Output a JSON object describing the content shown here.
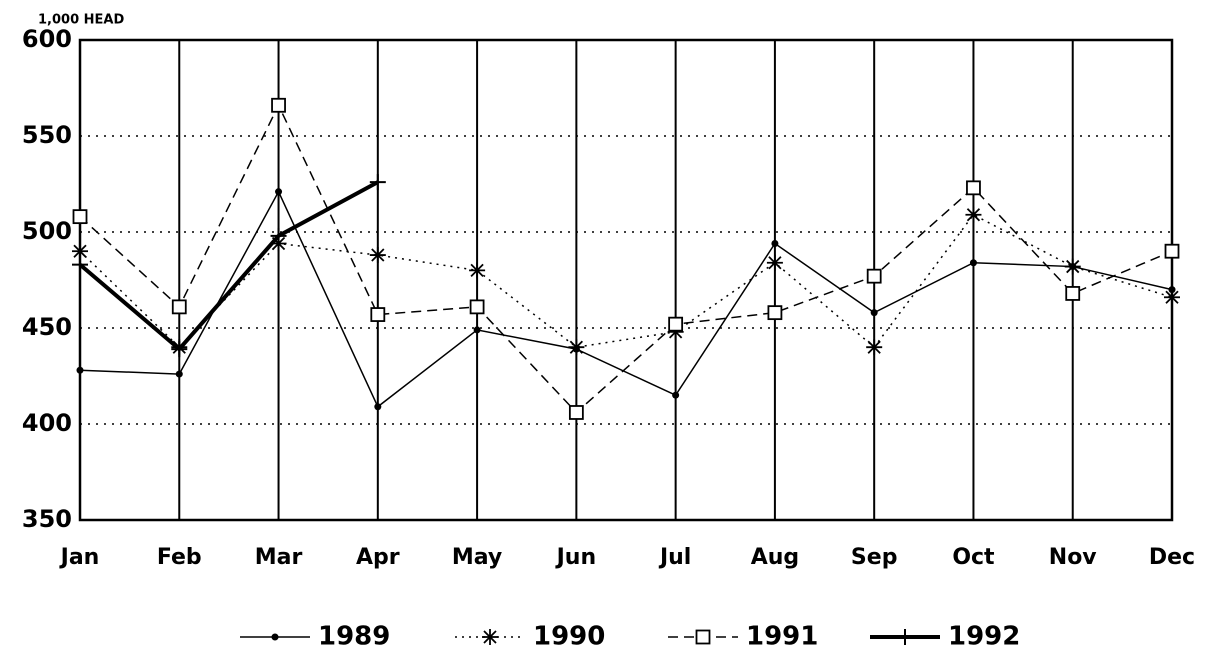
{
  "chart_data": {
    "type": "line",
    "y_axis_label": "1,000 HEAD",
    "categories": [
      "Jan",
      "Feb",
      "Mar",
      "Apr",
      "May",
      "Jun",
      "Jul",
      "Aug",
      "Sep",
      "Oct",
      "Nov",
      "Dec"
    ],
    "ylim": [
      350,
      600
    ],
    "yticks": [
      350,
      400,
      450,
      500,
      550,
      600
    ],
    "grid": true,
    "legend": "bottom",
    "series": [
      {
        "name": "1989",
        "color": "#000000",
        "marker": "dot",
        "dash": "solid",
        "width": 1.5,
        "values": [
          428,
          426,
          521,
          409,
          449,
          439,
          415,
          494,
          458,
          484,
          482,
          470
        ]
      },
      {
        "name": "1990",
        "color": "#000000",
        "marker": "star",
        "dash": "dotted",
        "width": 1.5,
        "values": [
          490,
          440,
          494,
          488,
          480,
          440,
          448,
          484,
          440,
          509,
          482,
          466
        ]
      },
      {
        "name": "1991",
        "color": "#000000",
        "marker": "square",
        "dash": "dashed",
        "width": 1.5,
        "values": [
          508,
          461,
          566,
          457,
          461,
          406,
          452,
          458,
          477,
          523,
          468,
          490
        ]
      },
      {
        "name": "1992",
        "color": "#000000",
        "marker": "plus",
        "dash": "solid",
        "width": 4,
        "values": [
          483,
          439,
          498,
          526,
          null,
          null,
          null,
          null,
          null,
          null,
          null,
          null
        ]
      }
    ]
  }
}
